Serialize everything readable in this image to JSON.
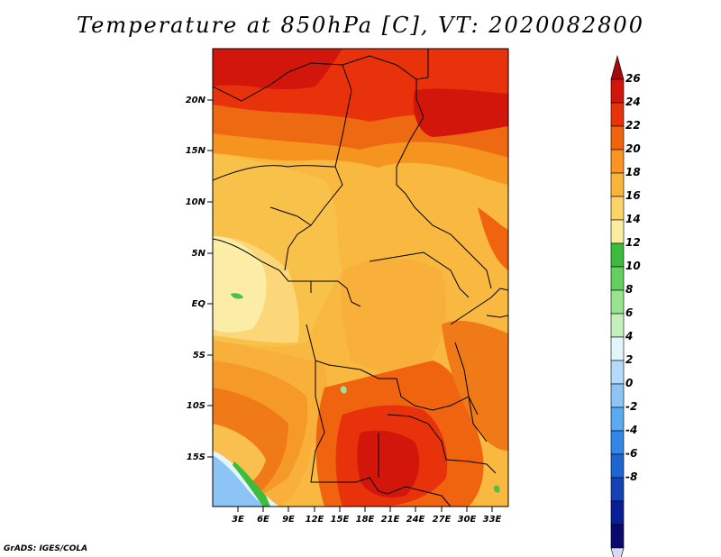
{
  "title": "Temperature at 850hPa [C], VT: 2020082800",
  "credit": "GrADS: IGES/COLA",
  "map": {
    "lat_labels": [
      "20N",
      "15N",
      "10N",
      "5N",
      "EQ",
      "5S",
      "10S",
      "15S"
    ],
    "lon_labels": [
      "3E",
      "6E",
      "9E",
      "12E",
      "15E",
      "18E",
      "21E",
      "24E",
      "27E",
      "30E",
      "33E"
    ]
  },
  "colorbar": {
    "labels": [
      "26",
      "24",
      "22",
      "20",
      "18",
      "16",
      "14",
      "12",
      "10",
      "8",
      "6",
      "4",
      "2",
      "0",
      "-2",
      "-4",
      "-6",
      "-8"
    ],
    "colors": [
      "#a50a0a",
      "#d2160c",
      "#e8320c",
      "#f0640f",
      "#f99520",
      "#f8b53a",
      "#f9d468",
      "#fbeda0",
      "#3cbb3c",
      "#64d060",
      "#98e390",
      "#c4f0bc",
      "#e3f5fb",
      "#b4dcfa",
      "#8cc4f5",
      "#5aaaf0",
      "#3287e8",
      "#1e64d2",
      "#1441b4",
      "#0a1e96",
      "#0a0a6e",
      "#d8d8f8"
    ]
  }
}
